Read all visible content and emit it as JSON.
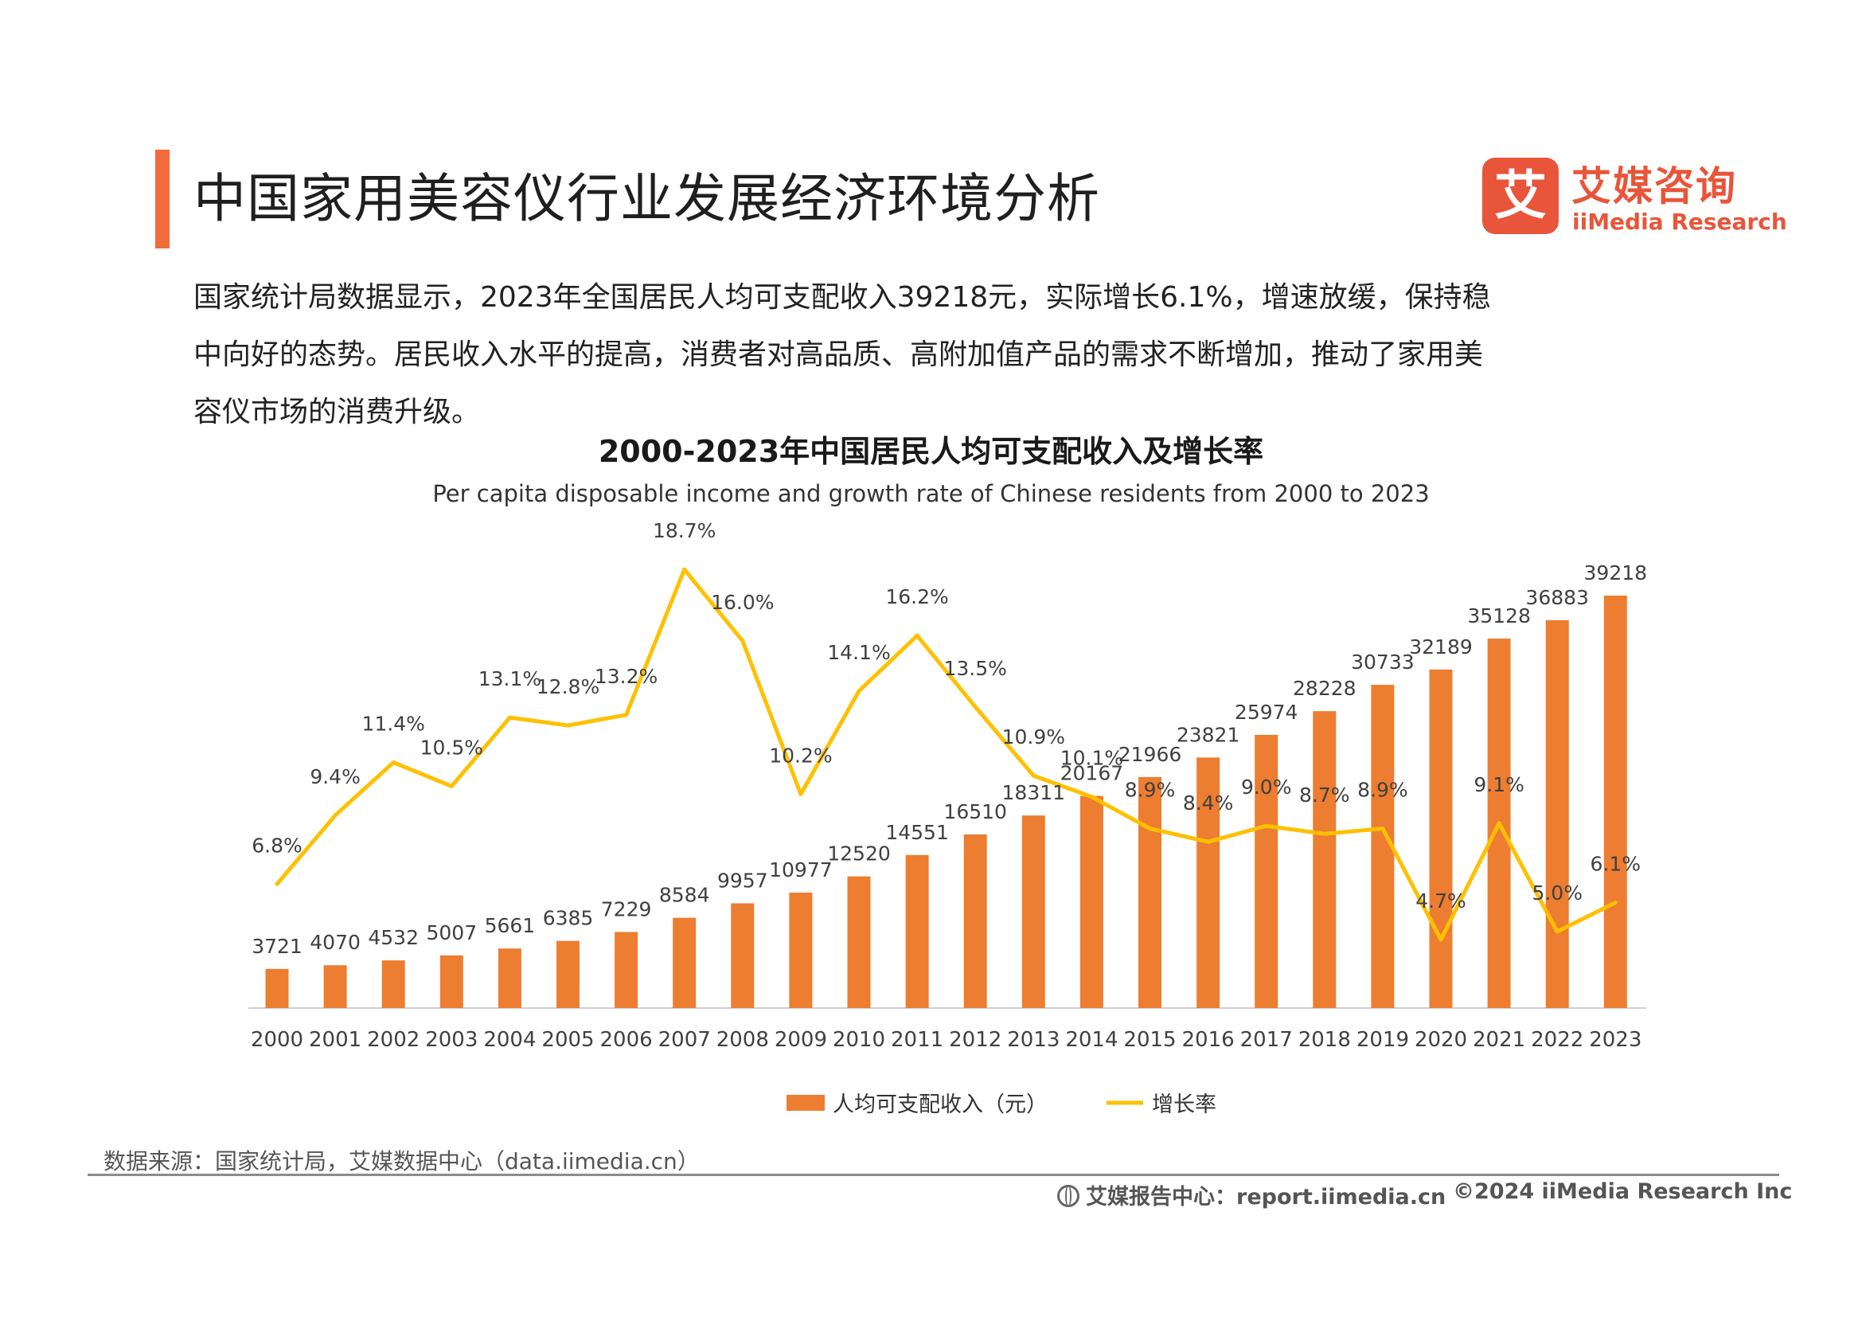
{
  "header": {
    "title": "中国家用美容仪行业发展经济环境分析",
    "logo_mark": "艾",
    "logo_cn": "艾媒咨询",
    "logo_en": "iiMedia Research"
  },
  "intro": {
    "lines": [
      "国家统计局数据显示，2023年全国居民人均可支配收入39218元，实际增长6.1%，增速放缓，保持稳",
      "中向好的态势。居民收入水平的提高，消费者对高品质、高附加值产品的需求不断增加，推动了家用美",
      "容仪市场的消费升级。"
    ]
  },
  "chart_data": {
    "type": "bar+line",
    "title": "2000-2023年中国居民人均可支配收入及增长率",
    "subtitle": "Per capita disposable income and growth rate of Chinese residents from 2000 to 2023",
    "categories": [
      "2000",
      "2001",
      "2002",
      "2003",
      "2004",
      "2005",
      "2006",
      "2007",
      "2008",
      "2009",
      "2010",
      "2011",
      "2012",
      "2013",
      "2014",
      "2015",
      "2016",
      "2017",
      "2018",
      "2019",
      "2020",
      "2021",
      "2022",
      "2023"
    ],
    "series": [
      {
        "name": "人均可支配收入（元）",
        "type": "bar",
        "color": "#ED7D31",
        "values": [
          3721,
          4070,
          4532,
          5007,
          5661,
          6385,
          7229,
          8584,
          9957,
          10977,
          12520,
          14551,
          16510,
          18311,
          20167,
          21966,
          23821,
          25974,
          28228,
          30733,
          32189,
          35128,
          36883,
          39218
        ]
      },
      {
        "name": "增长率",
        "type": "line",
        "color": "#FFC000",
        "unit": "%",
        "values": [
          6.8,
          9.4,
          11.4,
          10.5,
          13.1,
          12.8,
          13.2,
          18.7,
          16.0,
          10.2,
          14.1,
          16.2,
          13.5,
          10.9,
          10.1,
          8.9,
          8.4,
          9.0,
          8.7,
          8.9,
          4.7,
          9.1,
          5.0,
          6.1
        ],
        "labels": [
          "6.8%",
          "9.4%",
          "11.4%",
          "10.5%",
          "13.1%",
          "12.8%",
          "13.2%",
          "18.7%",
          "16.0%",
          "10.2%",
          "14.1%",
          "16.2%",
          "13.5%",
          "10.9%",
          "10.1%",
          "8.9%",
          "8.4%",
          "9.0%",
          "8.7%",
          "8.9%",
          "4.7%",
          "9.1%",
          "5.0%",
          "6.1%"
        ]
      }
    ],
    "legend": [
      "人均可支配收入（元）",
      "增长率"
    ],
    "legend_position": "bottom",
    "grid": false
  },
  "footer": {
    "source": "数据来源：国家统计局，艾媒数据中心（data.iimedia.cn）",
    "report": "艾媒报告中心：report.iimedia.cn",
    "copyright": "©2024  iiMedia Research  Inc"
  },
  "colors": {
    "accent": "#F26B3A",
    "bar": "#ED7D31",
    "line": "#FFC000",
    "logo": "#E8553A"
  }
}
